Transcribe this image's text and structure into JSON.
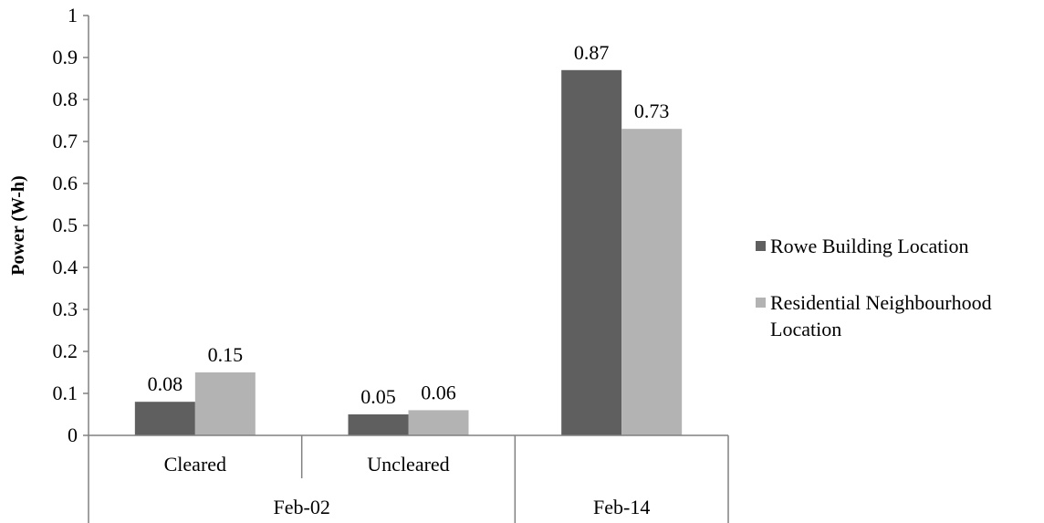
{
  "chart_data": {
    "type": "bar",
    "ylabel": "Power (W-h)",
    "ylim": [
      0,
      1
    ],
    "yticks": [
      "0",
      "0.1",
      "0.2",
      "0.3",
      "0.4",
      "0.5",
      "0.6",
      "0.7",
      "0.8",
      "0.9",
      "1"
    ],
    "categories": [
      "Cleared",
      "Uncleared",
      ""
    ],
    "groups": [
      {
        "label": "Feb-02",
        "categories": [
          "Cleared",
          "Uncleared"
        ]
      },
      {
        "label": "Feb-14",
        "categories": [
          ""
        ]
      }
    ],
    "series": [
      {
        "name": "Rowe Building Location",
        "color": "#5f5f5f",
        "values": [
          0.08,
          0.05,
          0.87
        ],
        "labels": [
          "0.08",
          "0.05",
          "0.87"
        ]
      },
      {
        "name": "Residential Neighbourhood Location",
        "color": "#b3b3b3",
        "values": [
          0.15,
          0.06,
          0.73
        ],
        "labels": [
          "0.15",
          "0.06",
          "0.73"
        ]
      }
    ],
    "legend_position": "right",
    "grid": false
  }
}
